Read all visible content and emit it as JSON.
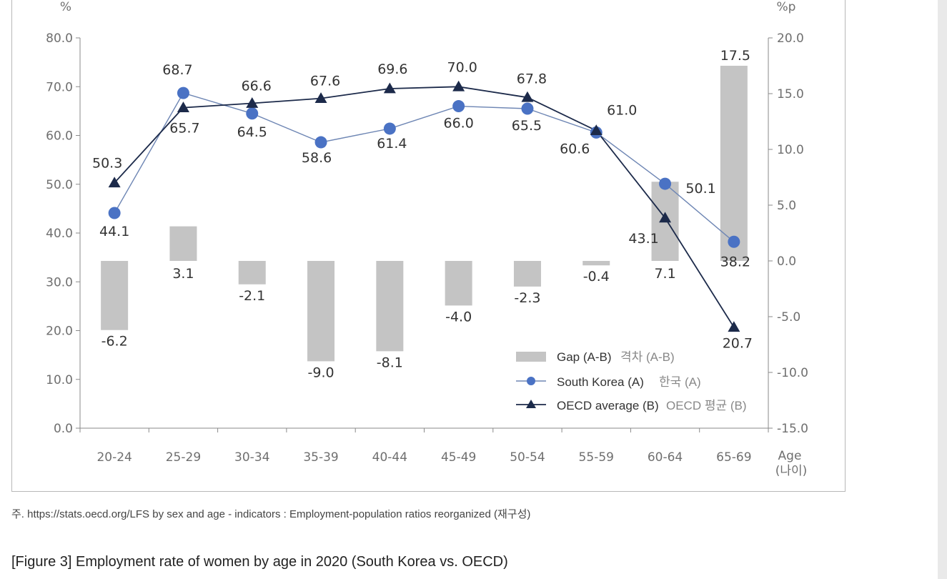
{
  "chart_data": {
    "type": "bar+line",
    "left_axis_unit": "%",
    "right_axis_unit": "%p",
    "left_ticks": [
      "0.0",
      "10.0",
      "20.0",
      "30.0",
      "40.0",
      "50.0",
      "60.0",
      "70.0",
      "80.0"
    ],
    "right_ticks": [
      "-15.0",
      "-10.0",
      "-5.0",
      "0.0",
      "5.0",
      "10.0",
      "15.0",
      "20.0"
    ],
    "ylim_left": [
      0,
      80
    ],
    "ylim_right": [
      -15,
      20
    ],
    "xlabel": "Age",
    "xlabel_ko": "(나이)",
    "categories": [
      "20-24",
      "25-29",
      "30-34",
      "35-39",
      "40-44",
      "45-49",
      "50-54",
      "55-59",
      "60-64",
      "65-69"
    ],
    "series": [
      {
        "name": "Gap (A-B)",
        "name_ko": "격차 (A-B)",
        "kind": "bar",
        "axis": "right",
        "values": [
          -6.2,
          3.1,
          -2.1,
          -9.0,
          -8.1,
          -4.0,
          -2.3,
          -0.4,
          7.1,
          17.5
        ],
        "labels": [
          "-6.2",
          "3.1",
          "-2.1",
          "-9.0",
          "-8.1",
          "-4.0",
          "-2.3",
          "-0.4",
          "7.1",
          "17.5"
        ]
      },
      {
        "name": "South Korea (A)",
        "name_ko": "한국 (A)",
        "kind": "line",
        "marker": "circle",
        "axis": "left",
        "values": [
          44.1,
          68.7,
          64.5,
          58.6,
          61.4,
          66.0,
          65.5,
          60.6,
          50.1,
          38.2
        ],
        "labels": [
          "44.1",
          "68.7",
          "64.5",
          "58.6",
          "61.4",
          "66.0",
          "65.5",
          "60.6",
          "50.1",
          "38.2"
        ]
      },
      {
        "name": "OECD average (B)",
        "name_ko": "OECD 평균 (B)",
        "kind": "line",
        "marker": "triangle",
        "axis": "left",
        "values": [
          50.3,
          65.7,
          66.6,
          67.6,
          69.6,
          70.0,
          67.8,
          61.0,
          43.1,
          20.7
        ],
        "labels": [
          "50.3",
          "65.7",
          "66.6",
          "67.6",
          "69.6",
          "70.0",
          "67.8",
          "61.0",
          "43.1",
          "20.7"
        ]
      }
    ],
    "colors": {
      "bar": "#c4c4c4",
      "korea": "#4a72c4",
      "korea_line": "#6e86b4",
      "oecd": "#1c2a4a",
      "axis": "#8a8a8a"
    },
    "legend_position": "bottom-right",
    "grid": false
  },
  "note": "주. https://stats.oecd.org/LFS by sex and age - indicators : Employment-population ratios reorganized (재구성)",
  "caption": "[Figure 3] Employment rate of women by age in 2020 (South Korea vs. OECD)"
}
